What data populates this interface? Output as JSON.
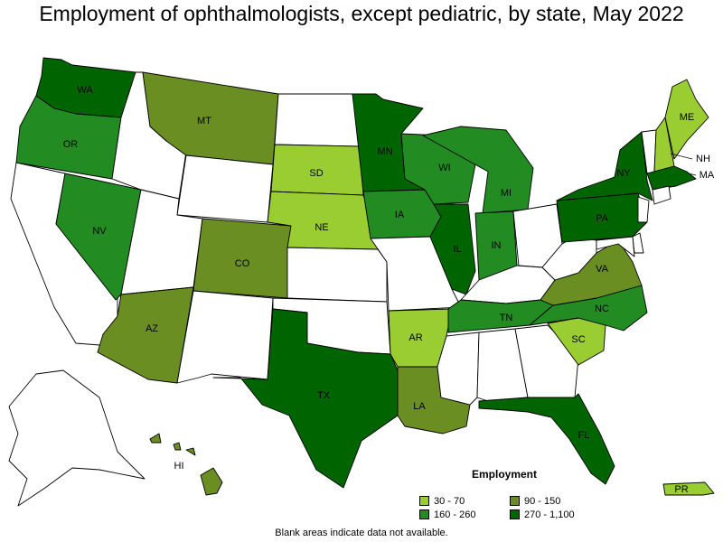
{
  "title": "Employment of ophthalmologists, except pediatric, by state, May 2022",
  "footnote": "Blank areas indicate data not available.",
  "legend": {
    "title": "Employment",
    "items": [
      {
        "label": "30 - 70",
        "color": "#9acd32"
      },
      {
        "label": "90 - 150",
        "color": "#6b8e23"
      },
      {
        "label": "160 - 260",
        "color": "#228b22"
      },
      {
        "label": "270 - 1,100",
        "color": "#006400"
      }
    ]
  },
  "states": {
    "WA": {
      "label": "WA",
      "bin": 3
    },
    "OR": {
      "label": "OR",
      "bin": 2
    },
    "CA": {
      "label": "",
      "bin": null
    },
    "NV": {
      "label": "NV",
      "bin": 2
    },
    "ID": {
      "label": "",
      "bin": null
    },
    "MT": {
      "label": "MT",
      "bin": 1
    },
    "WY": {
      "label": "",
      "bin": null
    },
    "UT": {
      "label": "",
      "bin": null
    },
    "AZ": {
      "label": "AZ",
      "bin": 1
    },
    "CO": {
      "label": "CO",
      "bin": 1
    },
    "NM": {
      "label": "",
      "bin": null
    },
    "ND": {
      "label": "",
      "bin": null
    },
    "SD": {
      "label": "SD",
      "bin": 0
    },
    "NE": {
      "label": "NE",
      "bin": 0
    },
    "KS": {
      "label": "",
      "bin": null
    },
    "OK": {
      "label": "",
      "bin": null
    },
    "TX": {
      "label": "TX",
      "bin": 3
    },
    "MN": {
      "label": "MN",
      "bin": 3
    },
    "IA": {
      "label": "IA",
      "bin": 2
    },
    "MO": {
      "label": "",
      "bin": null
    },
    "AR": {
      "label": "AR",
      "bin": 0
    },
    "LA": {
      "label": "LA",
      "bin": 1
    },
    "WI": {
      "label": "WI",
      "bin": 2
    },
    "IL": {
      "label": "IL",
      "bin": 3
    },
    "MI": {
      "label": "MI",
      "bin": 2
    },
    "IN": {
      "label": "IN",
      "bin": 2
    },
    "OH": {
      "label": "",
      "bin": null
    },
    "KY": {
      "label": "",
      "bin": null
    },
    "TN": {
      "label": "TN",
      "bin": 2
    },
    "MS": {
      "label": "",
      "bin": null
    },
    "AL": {
      "label": "",
      "bin": null
    },
    "GA": {
      "label": "",
      "bin": null
    },
    "FL": {
      "label": "FL",
      "bin": 3
    },
    "SC": {
      "label": "SC",
      "bin": 0
    },
    "NC": {
      "label": "NC",
      "bin": 2
    },
    "VA": {
      "label": "VA",
      "bin": 1
    },
    "WV": {
      "label": "",
      "bin": null
    },
    "PA": {
      "label": "PA",
      "bin": 3
    },
    "NY": {
      "label": "NY",
      "bin": 3
    },
    "VT": {
      "label": "",
      "bin": null
    },
    "NH": {
      "label": "NH",
      "bin": 0
    },
    "ME": {
      "label": "ME",
      "bin": 0
    },
    "MA": {
      "label": "MA",
      "bin": 3
    },
    "AK": {
      "label": "",
      "bin": null
    },
    "HI": {
      "label": "HI",
      "bin": 1
    },
    "PR": {
      "label": "PR",
      "bin": 0
    }
  }
}
